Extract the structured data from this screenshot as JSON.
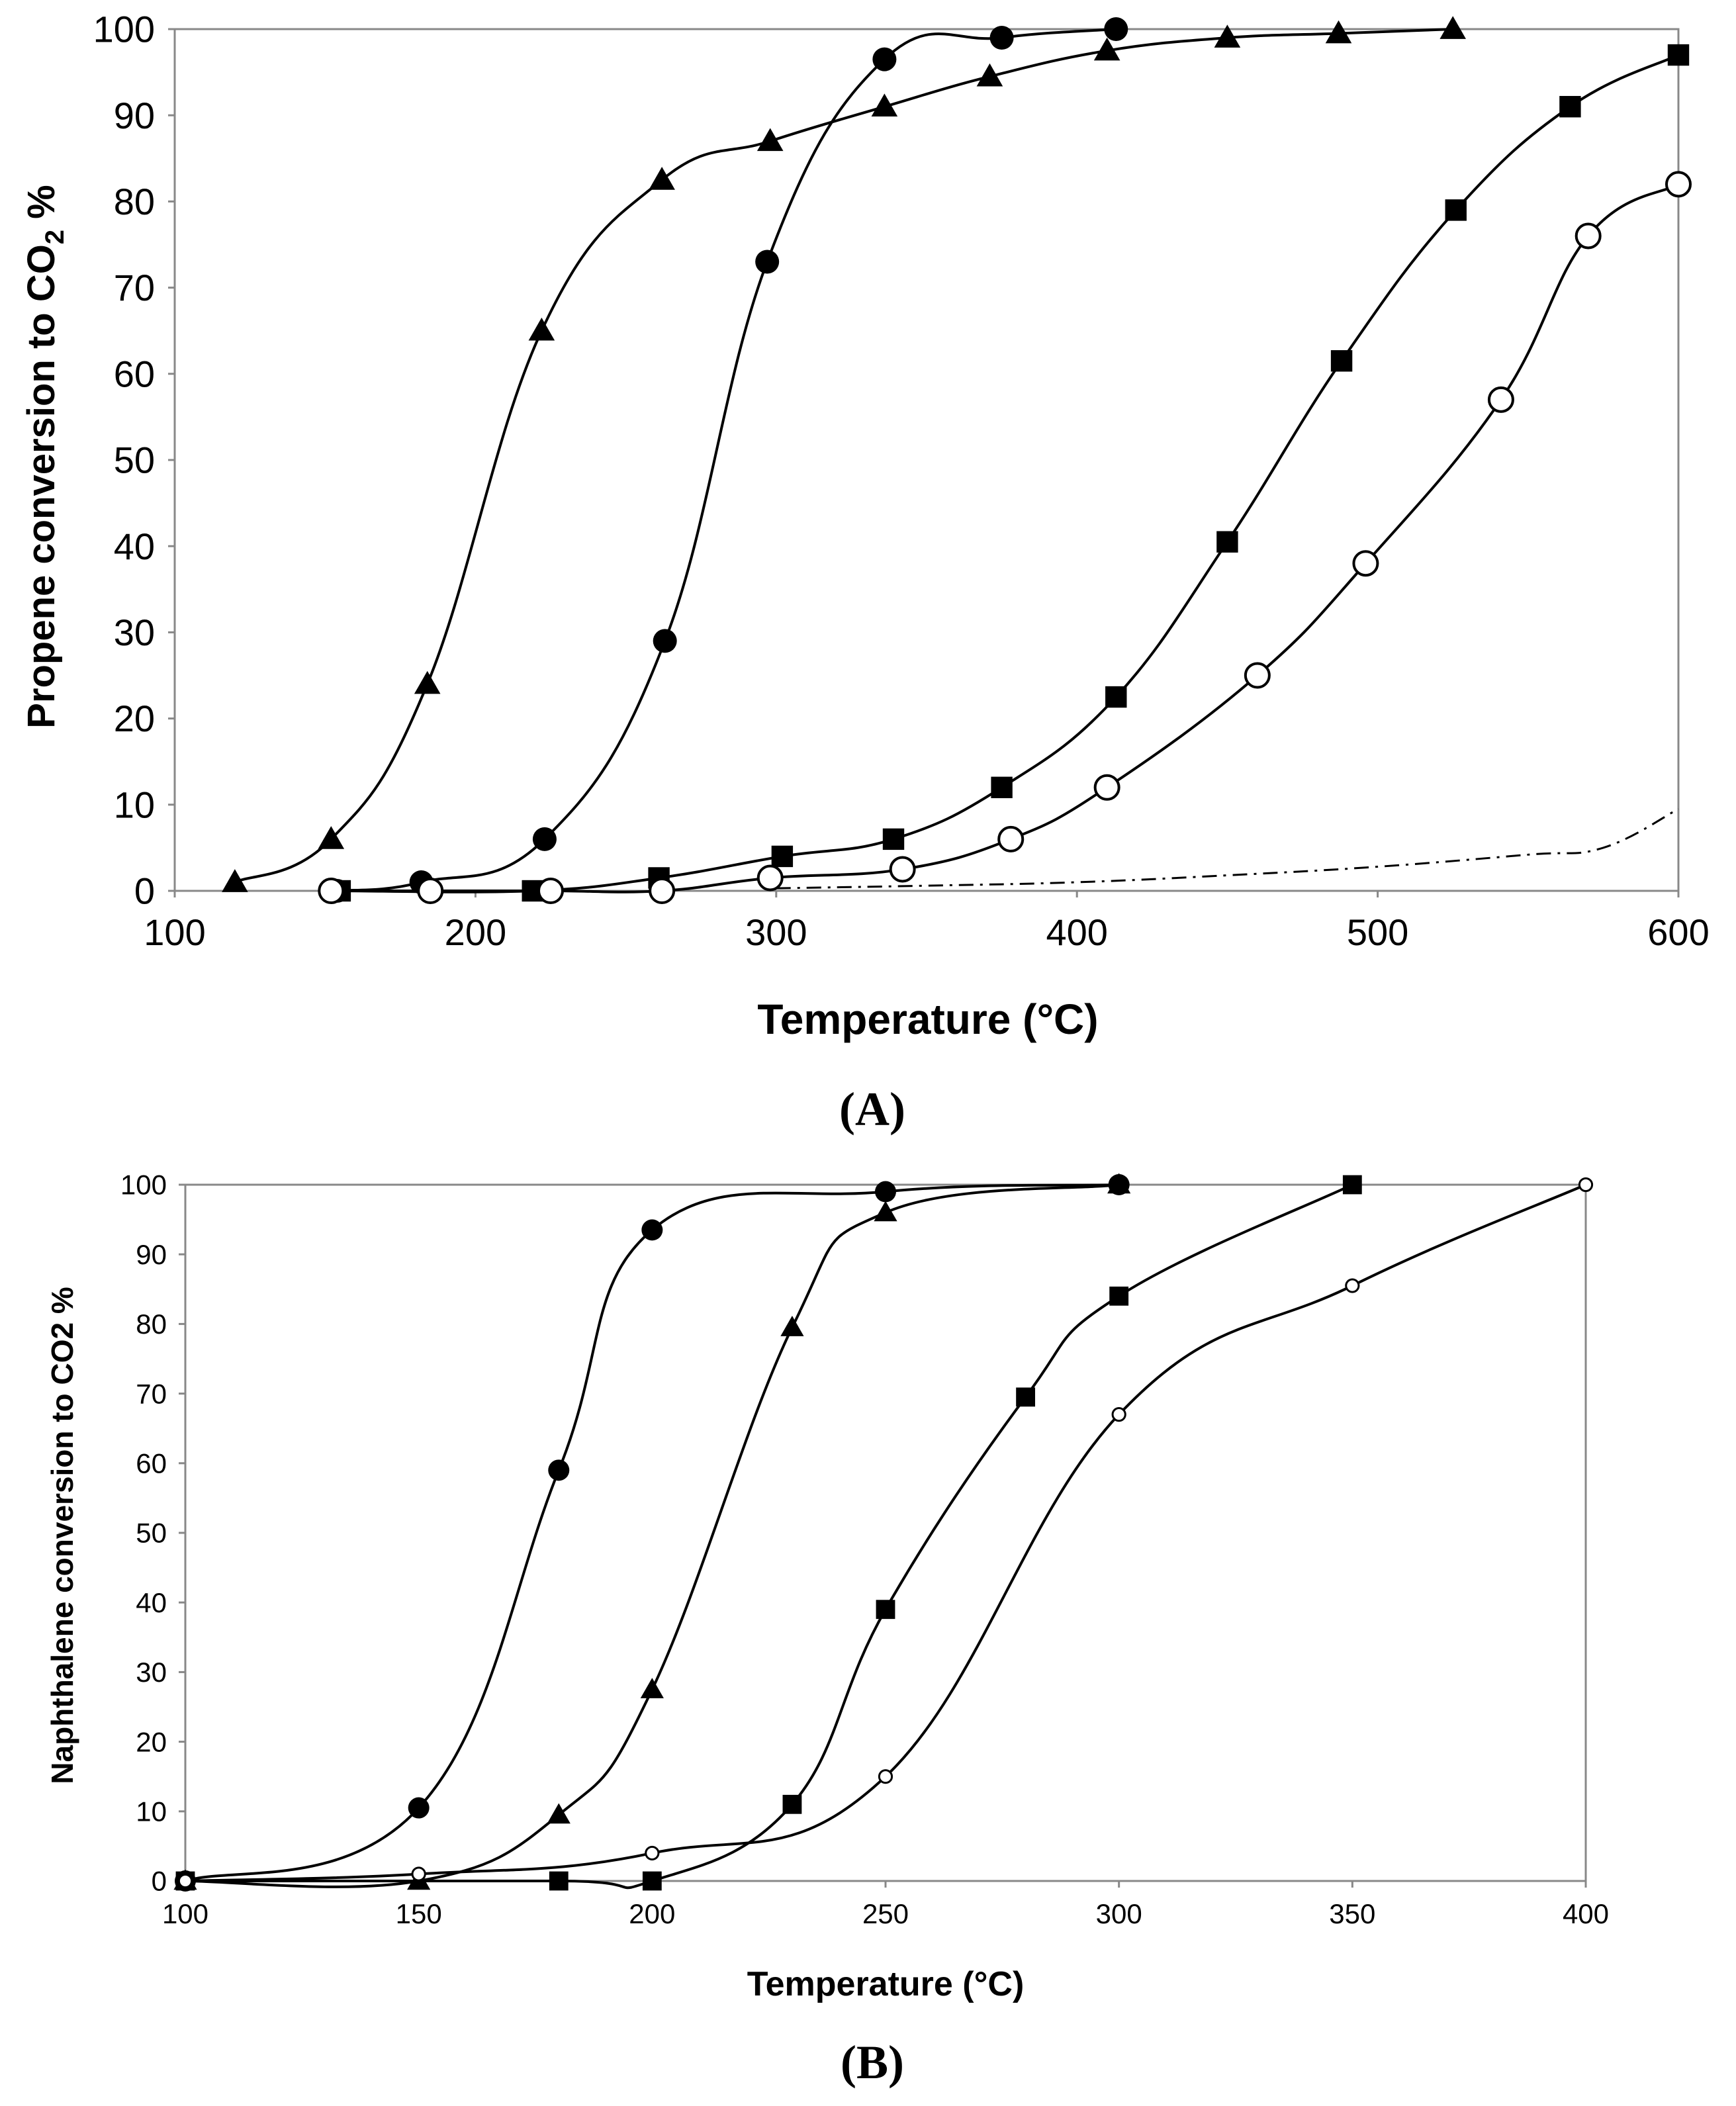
{
  "chart_data": [
    {
      "type": "line",
      "panel_label": "(A)",
      "xlabel": "Temperature (°C)",
      "ylabel_main": "Propene conversion  to CO",
      "ylabel_sub": "2",
      "ylabel_suffix": " %",
      "xlim": [
        100,
        600
      ],
      "ylim": [
        0,
        100
      ],
      "xticks": [
        100,
        200,
        300,
        400,
        500,
        600
      ],
      "yticks": [
        0,
        10,
        20,
        30,
        40,
        50,
        60,
        70,
        80,
        90,
        100
      ],
      "series": [
        {
          "name": "triangle",
          "marker": "triangle-filled",
          "x": [
            120,
            152,
            184,
            222,
            262,
            298,
            336,
            371,
            410,
            450,
            487,
            525
          ],
          "y": [
            1,
            6,
            24,
            65,
            82.5,
            87,
            91,
            94.5,
            97.5,
            99,
            99.5,
            100
          ]
        },
        {
          "name": "circle-filled",
          "marker": "circle-filled",
          "x": [
            154,
            182,
            223,
            263,
            297,
            336,
            375,
            413
          ],
          "y": [
            0,
            1,
            6,
            29,
            73,
            96.5,
            99,
            100
          ]
        },
        {
          "name": "square",
          "marker": "square-filled",
          "x": [
            155,
            219,
            261,
            302,
            339,
            375,
            413,
            450,
            488,
            526,
            564,
            600
          ],
          "y": [
            0,
            0,
            1.5,
            4,
            6,
            12,
            22.5,
            40.5,
            61.5,
            79,
            91,
            97
          ]
        },
        {
          "name": "circle-open",
          "marker": "circle-open",
          "x": [
            152,
            185,
            225,
            262,
            298,
            342,
            378,
            410,
            460,
            496,
            541,
            570,
            600
          ],
          "y": [
            0,
            0,
            0,
            0,
            1.5,
            2.5,
            6,
            12,
            25,
            38,
            57,
            76,
            82
          ]
        },
        {
          "name": "dash-dot",
          "marker": "none",
          "dashed": true,
          "x": [
            300,
            350,
            400,
            450,
            500,
            550,
            575,
            600
          ],
          "y": [
            0.3,
            0.6,
            1,
            1.8,
            2.8,
            4.2,
            5,
            9.5
          ]
        }
      ]
    },
    {
      "type": "line",
      "panel_label": "(B)",
      "xlabel": "Temperature (°C)",
      "ylabel": "Naphthalene conversion to CO2 %",
      "xlim": [
        100,
        400
      ],
      "ylim": [
        0,
        100
      ],
      "xticks": [
        100,
        150,
        200,
        250,
        300,
        350,
        400
      ],
      "yticks": [
        0,
        10,
        20,
        30,
        40,
        50,
        60,
        70,
        80,
        90,
        100
      ],
      "series": [
        {
          "name": "circle-filled",
          "marker": "circle-filled",
          "x": [
            100,
            150,
            180,
            200,
            250,
            300
          ],
          "y": [
            0,
            10.5,
            59,
            93.5,
            99,
            100
          ]
        },
        {
          "name": "triangle",
          "marker": "triangle-filled",
          "x": [
            100,
            150,
            180,
            200,
            230,
            250,
            300
          ],
          "y": [
            0,
            0,
            9.5,
            27.5,
            79.5,
            96,
            100
          ]
        },
        {
          "name": "square",
          "marker": "square-filled",
          "x": [
            100,
            180,
            200,
            230,
            250,
            280,
            300,
            350
          ],
          "y": [
            0,
            0,
            0,
            11,
            39,
            69.5,
            84,
            100
          ]
        },
        {
          "name": "circle-open",
          "marker": "circle-open-small",
          "x": [
            100,
            150,
            200,
            250,
            300,
            350,
            400
          ],
          "y": [
            0,
            1,
            4,
            15,
            67,
            85.5,
            100
          ]
        }
      ]
    }
  ]
}
